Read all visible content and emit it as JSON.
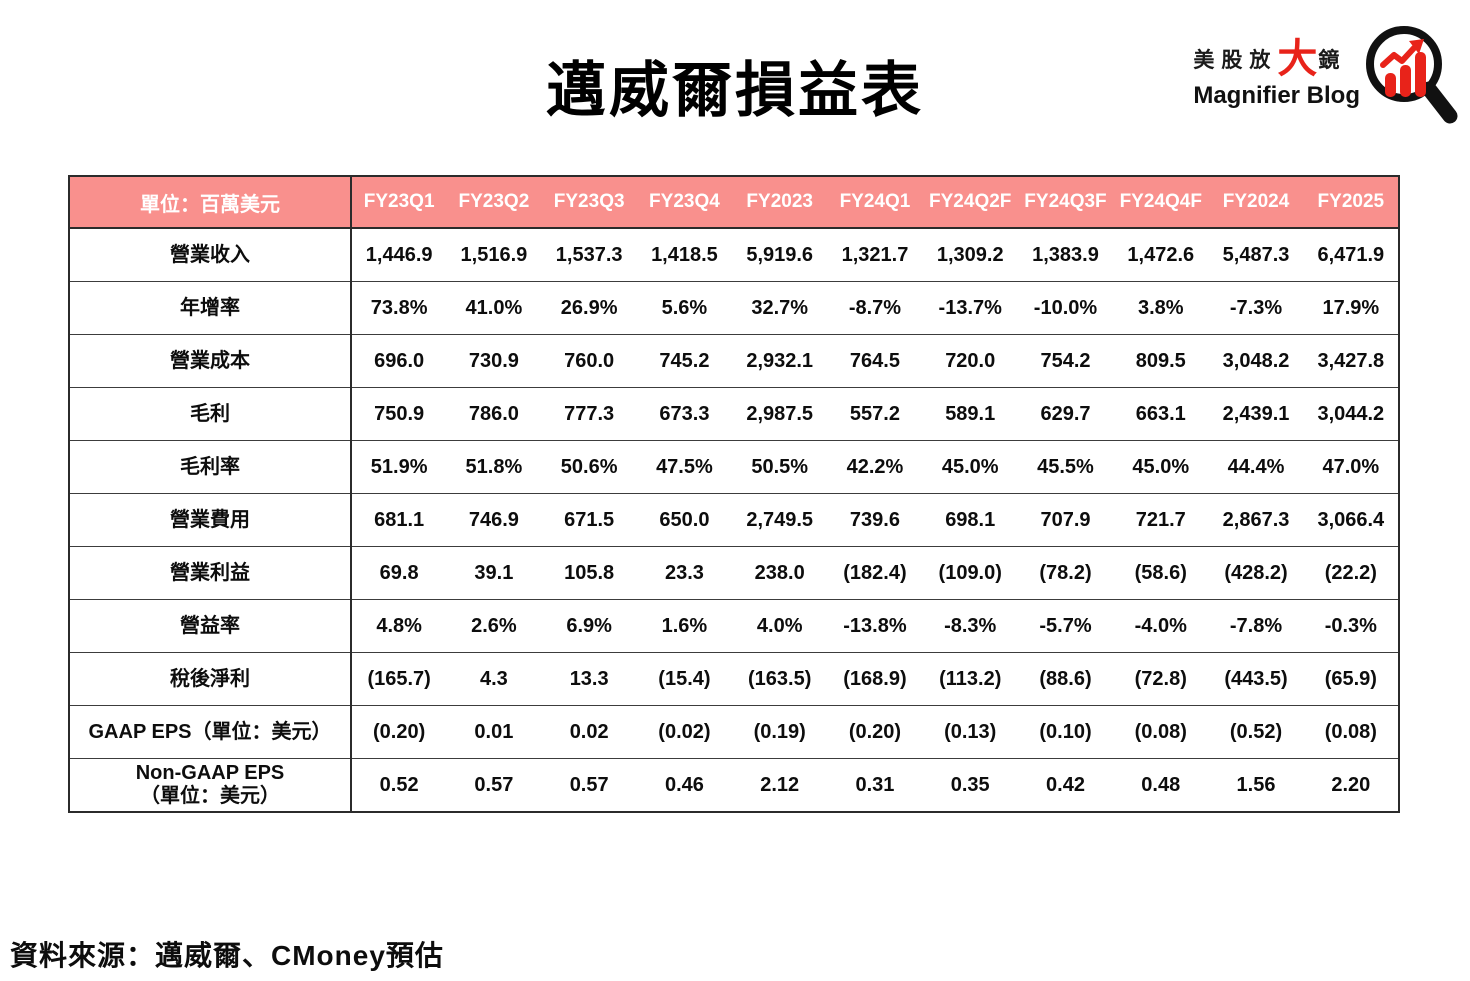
{
  "page": {
    "title": "邁威爾損益表",
    "source_note": "資料來源：邁威爾、CMoney預估"
  },
  "logo": {
    "brand_zh_prefix": "美股放",
    "brand_zh_big": "大",
    "brand_zh_suffix": "鏡",
    "brand_en": "Magnifier Blog",
    "icon": "magnifier-barchart-icon",
    "accent_color": "#e8231a"
  },
  "colors": {
    "header_bg": "#f9908d",
    "header_text": "#ffffff",
    "border": "#2b2b2b",
    "body_text": "#0d0d0d"
  },
  "chart_data": {
    "type": "table",
    "title": "邁威爾損益表",
    "unit": "單位：百萬美元",
    "columns": [
      "FY23Q1",
      "FY23Q2",
      "FY23Q3",
      "FY23Q4",
      "FY2023",
      "FY24Q1",
      "FY24Q2F",
      "FY24Q3F",
      "FY24Q4F",
      "FY2024",
      "FY2025"
    ],
    "rows": [
      {
        "label": "營業收入",
        "values": [
          "1,446.9",
          "1,516.9",
          "1,537.3",
          "1,418.5",
          "5,919.6",
          "1,321.7",
          "1,309.2",
          "1,383.9",
          "1,472.6",
          "5,487.3",
          "6,471.9"
        ]
      },
      {
        "label": "年增率",
        "values": [
          "73.8%",
          "41.0%",
          "26.9%",
          "5.6%",
          "32.7%",
          "-8.7%",
          "-13.7%",
          "-10.0%",
          "3.8%",
          "-7.3%",
          "17.9%"
        ]
      },
      {
        "label": "營業成本",
        "values": [
          "696.0",
          "730.9",
          "760.0",
          "745.2",
          "2,932.1",
          "764.5",
          "720.0",
          "754.2",
          "809.5",
          "3,048.2",
          "3,427.8"
        ]
      },
      {
        "label": "毛利",
        "values": [
          "750.9",
          "786.0",
          "777.3",
          "673.3",
          "2,987.5",
          "557.2",
          "589.1",
          "629.7",
          "663.1",
          "2,439.1",
          "3,044.2"
        ]
      },
      {
        "label": "毛利率",
        "values": [
          "51.9%",
          "51.8%",
          "50.6%",
          "47.5%",
          "50.5%",
          "42.2%",
          "45.0%",
          "45.5%",
          "45.0%",
          "44.4%",
          "47.0%"
        ]
      },
      {
        "label": "營業費用",
        "values": [
          "681.1",
          "746.9",
          "671.5",
          "650.0",
          "2,749.5",
          "739.6",
          "698.1",
          "707.9",
          "721.7",
          "2,867.3",
          "3,066.4"
        ]
      },
      {
        "label": "營業利益",
        "values": [
          "69.8",
          "39.1",
          "105.8",
          "23.3",
          "238.0",
          "(182.4)",
          "(109.0)",
          "(78.2)",
          "(58.6)",
          "(428.2)",
          "(22.2)"
        ]
      },
      {
        "label": "營益率",
        "values": [
          "4.8%",
          "2.6%",
          "6.9%",
          "1.6%",
          "4.0%",
          "-13.8%",
          "-8.3%",
          "-5.7%",
          "-4.0%",
          "-7.8%",
          "-0.3%"
        ]
      },
      {
        "label": "稅後淨利",
        "values": [
          "(165.7)",
          "4.3",
          "13.3",
          "(15.4)",
          "(163.5)",
          "(168.9)",
          "(113.2)",
          "(88.6)",
          "(72.8)",
          "(443.5)",
          "(65.9)"
        ]
      },
      {
        "label": "GAAP EPS（單位：美元）",
        "values": [
          "(0.20)",
          "0.01",
          "0.02",
          "(0.02)",
          "(0.19)",
          "(0.20)",
          "(0.13)",
          "(0.10)",
          "(0.08)",
          "(0.52)",
          "(0.08)"
        ]
      },
      {
        "label": "Non-GAAP EPS\n（單位：美元）",
        "values": [
          "0.52",
          "0.57",
          "0.57",
          "0.46",
          "2.12",
          "0.31",
          "0.35",
          "0.42",
          "0.48",
          "1.56",
          "2.20"
        ]
      }
    ],
    "source": "資料來源：邁威爾、CMoney預估"
  }
}
